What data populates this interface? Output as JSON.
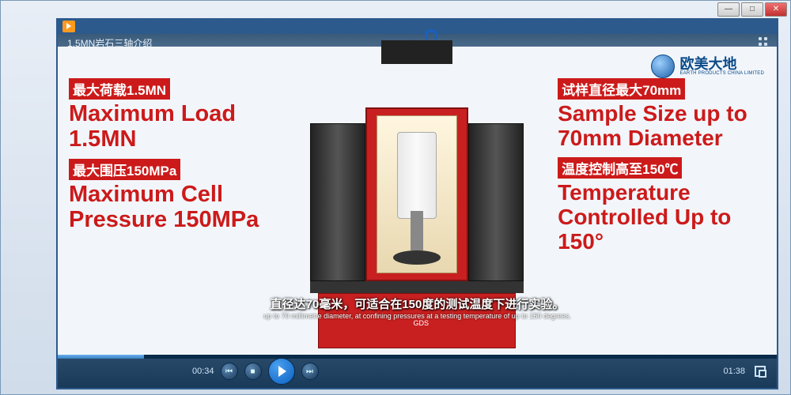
{
  "window": {
    "minimize": "—",
    "maximize": "□",
    "close": "✕"
  },
  "video": {
    "title": "1.5MN岩石三轴介绍",
    "logo_main": "欧美大地",
    "logo_sub": "EARTH PRODUCTS CHINA LIMITED",
    "gds_label": "GDS"
  },
  "left": {
    "cn1": "最大荷载1.5MN",
    "en1": "Maximum Load 1.5MN",
    "cn2": "最大围压150MPa",
    "en2": "Maximum Cell Pressure 150MPa"
  },
  "right": {
    "cn1": "试样直径最大70mm",
    "en1": "Sample Size up to 70mm Diameter",
    "cn2": "温度控制高至150℃",
    "en2": "Temperature Controlled Up to 150°"
  },
  "subtitles": {
    "cn": "直径达70毫米，可适合在150度的测试温度下进行实验。",
    "en": "up to 70 millimetre diameter, at confining pressures at a testing temperature of up to 150 degrees."
  },
  "controls": {
    "current_time": "00:34",
    "total_time": "01:38",
    "prev_glyph": "⏮",
    "stop_glyph": "■",
    "next_glyph": "⏭"
  }
}
